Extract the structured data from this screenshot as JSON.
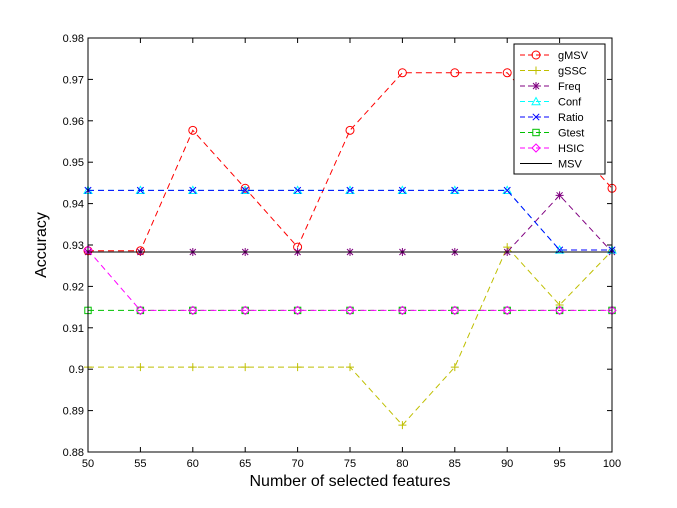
{
  "chart_data": {
    "type": "line",
    "title": "",
    "xlabel": "Number of selected features",
    "ylabel": "Accuracy",
    "xlim": [
      50,
      100
    ],
    "ylim": [
      0.88,
      0.98
    ],
    "x": [
      50,
      55,
      60,
      65,
      70,
      75,
      80,
      85,
      90,
      95,
      100
    ],
    "xticks": [
      "50",
      "55",
      "60",
      "65",
      "70",
      "75",
      "80",
      "85",
      "90",
      "95",
      "100"
    ],
    "yticks": [
      {
        "value": 0.88,
        "label": "0.88"
      },
      {
        "value": 0.89,
        "label": "0.89"
      },
      {
        "value": 0.9,
        "label": "0.9"
      },
      {
        "value": 0.91,
        "label": "0.91"
      },
      {
        "value": 0.92,
        "label": "0.92"
      },
      {
        "value": 0.93,
        "label": "0.93"
      },
      {
        "value": 0.94,
        "label": "0.94"
      },
      {
        "value": 0.95,
        "label": "0.95"
      },
      {
        "value": 0.96,
        "label": "0.96"
      },
      {
        "value": 0.97,
        "label": "0.97"
      },
      {
        "value": 0.98,
        "label": "0.98"
      }
    ],
    "grid": false,
    "legend_position": "top-right",
    "series": [
      {
        "name": "gMSV",
        "color": "#ff0000",
        "dash": "dashed",
        "marker": "circle",
        "values": [
          0.9286,
          0.9286,
          0.9577,
          0.9437,
          0.9295,
          0.9577,
          0.9716,
          0.9716,
          0.9716,
          null,
          0.9437
        ]
      },
      {
        "name": "gSSC",
        "color": "#bfbf00",
        "dash": "dashed",
        "marker": "plus",
        "values": [
          0.9005,
          0.9005,
          0.9005,
          0.9005,
          0.9005,
          0.9005,
          0.8865,
          0.9005,
          0.9295,
          0.9155,
          0.9286
        ]
      },
      {
        "name": "Freq",
        "color": "#800080",
        "dash": "dashed",
        "marker": "star",
        "values": [
          0.9283,
          0.9283,
          0.9283,
          0.9283,
          0.9283,
          0.9283,
          0.9283,
          0.9283,
          0.9283,
          0.942,
          0.9283
        ]
      },
      {
        "name": "Conf",
        "color": "#00ffff",
        "dash": "dashed",
        "marker": "triangle",
        "values": [
          0.9432,
          0.9432,
          0.9432,
          0.9432,
          0.9432,
          0.9432,
          0.9432,
          0.9432,
          0.9432,
          0.9288,
          0.9288
        ]
      },
      {
        "name": "Ratio",
        "color": "#0000ff",
        "dash": "dashed",
        "marker": "x",
        "values": [
          0.9432,
          0.9432,
          0.9432,
          0.9432,
          0.9432,
          0.9432,
          0.9432,
          0.9432,
          0.9432,
          0.9288,
          0.9288
        ]
      },
      {
        "name": "Gtest",
        "color": "#00c000",
        "dash": "dashed",
        "marker": "square",
        "values": [
          0.9142,
          0.9142,
          0.9142,
          0.9142,
          0.9142,
          0.9142,
          0.9142,
          0.9142,
          0.9142,
          0.9142,
          0.9142
        ]
      },
      {
        "name": "HSIC",
        "color": "#ff00ff",
        "dash": "dashed",
        "marker": "diamond",
        "values": [
          0.9288,
          0.9142,
          0.9142,
          0.9142,
          0.9142,
          0.9142,
          0.9142,
          0.9142,
          0.9142,
          0.9142,
          0.9142
        ]
      },
      {
        "name": "MSV",
        "color": "#000000",
        "dash": "solid",
        "marker": "none",
        "values": [
          0.9283,
          0.9283,
          0.9283,
          0.9283,
          0.9283,
          0.9283,
          0.9283,
          0.9283,
          0.9283,
          0.9283,
          0.9283
        ]
      }
    ]
  }
}
